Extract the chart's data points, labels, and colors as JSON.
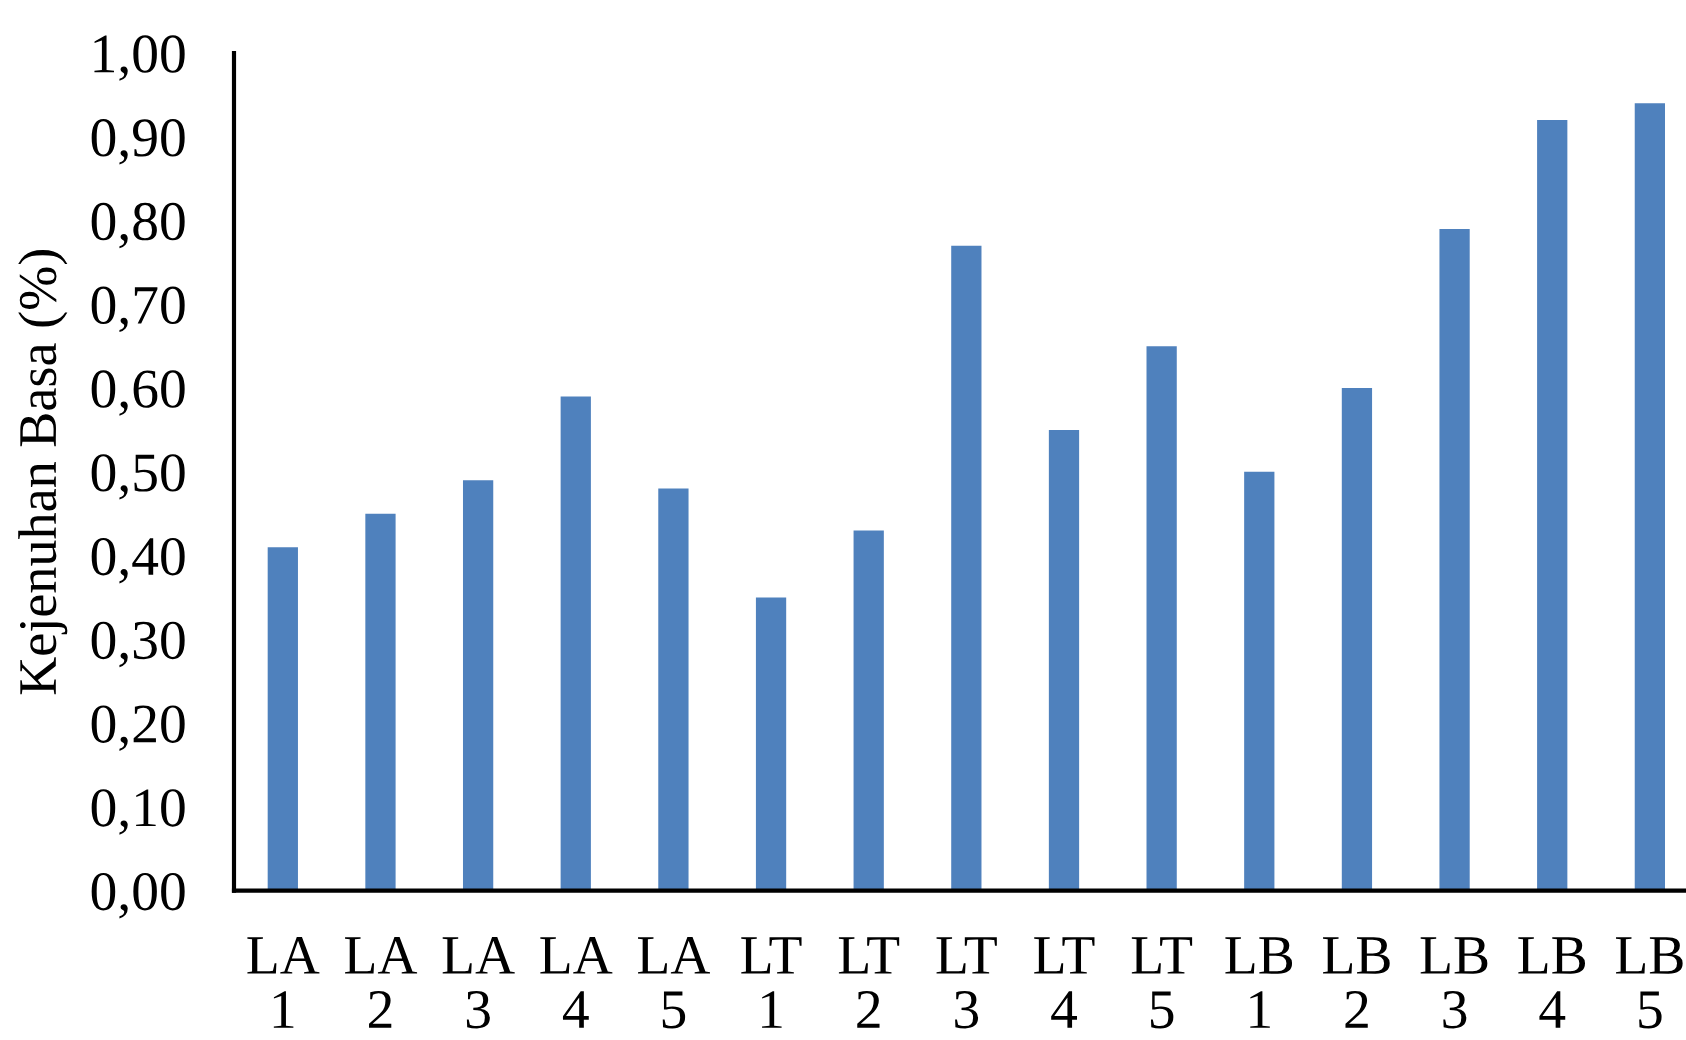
{
  "chart_data": {
    "type": "bar",
    "ylabel": "Kejenuhan Basa (%)",
    "categories": [
      "LA\n1",
      "LA\n2",
      "LA\n3",
      "LA\n4",
      "LA\n5",
      "LT\n1",
      "LT\n2",
      "LT\n3",
      "LT\n4",
      "LT\n5",
      "LB\n1",
      "LB\n2",
      "LB\n3",
      "LB\n4",
      "LB\n5"
    ],
    "values": [
      0.41,
      0.45,
      0.49,
      0.59,
      0.48,
      0.35,
      0.43,
      0.77,
      0.55,
      0.65,
      0.5,
      0.6,
      0.79,
      0.92,
      0.94
    ],
    "color": "#4f81bd",
    "ylim": [
      0,
      1
    ],
    "yticks": [
      {
        "value": 0,
        "label": "0,00"
      },
      {
        "value": 0.1,
        "label": "0,10"
      },
      {
        "value": 0.2,
        "label": "0,20"
      },
      {
        "value": 0.3,
        "label": "0,30"
      },
      {
        "value": 0.4,
        "label": "0,40"
      },
      {
        "value": 0.5,
        "label": "0,50"
      },
      {
        "value": 0.6,
        "label": "0,60"
      },
      {
        "value": 0.7,
        "label": "0,70"
      },
      {
        "value": 0.8,
        "label": "0,80"
      },
      {
        "value": 0.9,
        "label": "0,90"
      },
      {
        "value": 1,
        "label": "1,00"
      }
    ],
    "grid": false
  }
}
